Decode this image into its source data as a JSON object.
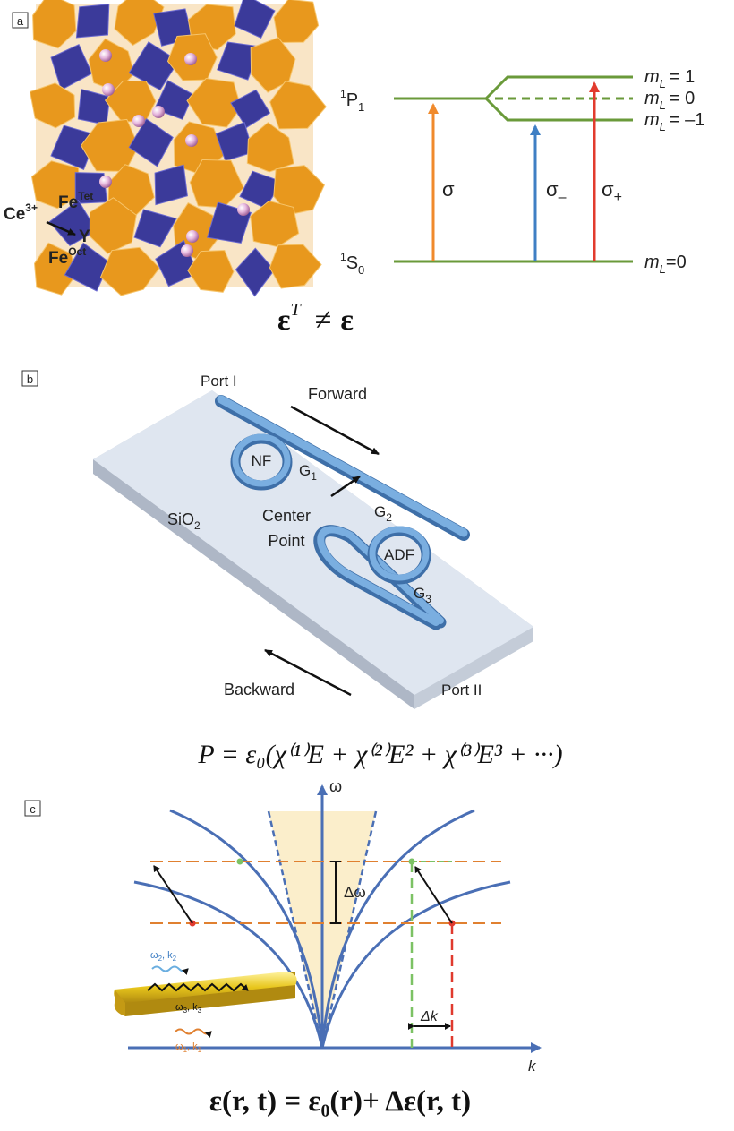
{
  "panel_a": {
    "label": "a",
    "crystal_labels": {
      "ce": "Ce",
      "ce_sup": "3+",
      "fe_tet": "Fe",
      "fe_tet_sup": "Tet",
      "y": "Y",
      "fe_oct": "Fe",
      "fe_oct_sup": "Oct"
    },
    "levels": {
      "upper": "P",
      "upper_pre": "1",
      "upper_sub": "1",
      "lower": "S",
      "lower_pre": "1",
      "lower_sub": "0",
      "ml_plus": "= 1",
      "ml_zero": "= 0",
      "ml_minus": "= –1",
      "ml_ground": "=0",
      "ml_symbol": "m",
      "ml_sub": "L"
    },
    "transitions": {
      "sigma": "σ",
      "sigma_minus": "σ",
      "sigma_minus_sub": "–",
      "sigma_plus": "σ",
      "sigma_plus_sub": "+"
    },
    "equation": {
      "eps": "ε",
      "sup": "T",
      "neq": "≠",
      "eps2": "ε"
    },
    "colors": {
      "level": "#6a9a3a",
      "sigma": "#f08a2c",
      "sigma_minus": "#3f7fc4",
      "sigma_plus": "#e23b2e",
      "octa": "#3b3a9a",
      "tetra": "#e8981d"
    }
  },
  "panel_b": {
    "label": "b",
    "port1": "Port I",
    "port2": "Port II",
    "forward": "Forward",
    "backward": "Backward",
    "nf": "NF",
    "adf": "ADF",
    "g1": "G",
    "g1_sub": "1",
    "g2": "G",
    "g2_sub": "2",
    "g3": "G",
    "g3_sub": "3",
    "sio2": "SiO",
    "sio2_sub": "2",
    "center1": "Center",
    "center2": "Point",
    "equation": "P = ε₀(χ⁽¹⁾E + χ⁽²⁾E² + χ⁽³⁾E³ + ···)",
    "colors": {
      "substrate": "#dfe6f0",
      "waveguide": "#5b93cc"
    }
  },
  "panel_c": {
    "label": "c",
    "axis_y": "ω",
    "axis_x": "k",
    "delta_omega": "Δω",
    "delta_k": "Δk",
    "wave_labels": [
      {
        "w": "ω",
        "w_sub": "2",
        "k": "k",
        "k_sub": "2"
      },
      {
        "w": "ω",
        "w_sub": "3",
        "k": "k",
        "k_sub": "3"
      },
      {
        "w": "ω",
        "w_sub": "1",
        "k": "k",
        "k_sub": "1"
      }
    ],
    "equation": "ε(r, t) = ε₀(r)+ Δε(r, t)",
    "colors": {
      "curve": "#4a6fb5",
      "cone": "#fbeecb",
      "dash_orange": "#e08030",
      "dash_green": "#7cc264",
      "dash_red": "#e03a2e",
      "rod": "#e8c61c"
    }
  }
}
